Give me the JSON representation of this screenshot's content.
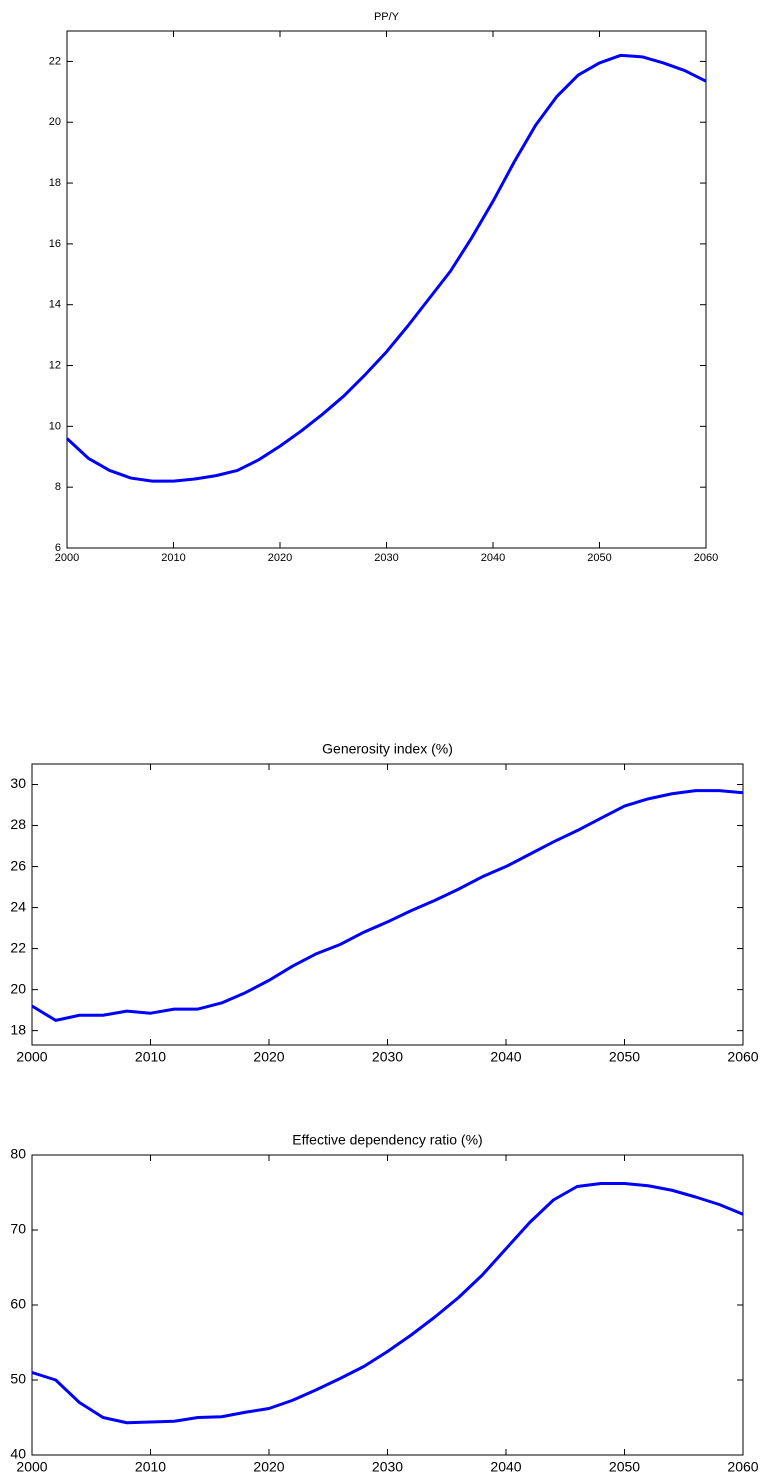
{
  "chart_data": [
    {
      "type": "line",
      "title": "PP/Y",
      "color": "#0000ff",
      "x": [
        2000,
        2002,
        2004,
        2006,
        2008,
        2010,
        2012,
        2014,
        2016,
        2018,
        2020,
        2022,
        2024,
        2026,
        2028,
        2030,
        2032,
        2034,
        2036,
        2038,
        2040,
        2042,
        2044,
        2046,
        2048,
        2050,
        2052,
        2054,
        2056,
        2058,
        2060
      ],
      "values": [
        9.6,
        8.95,
        8.55,
        8.3,
        8.2,
        8.2,
        8.27,
        8.38,
        8.55,
        8.9,
        9.35,
        9.85,
        10.4,
        11.0,
        11.7,
        12.45,
        13.3,
        14.2,
        15.1,
        16.2,
        17.4,
        18.7,
        19.9,
        20.85,
        21.55,
        21.95,
        22.2,
        22.15,
        21.95,
        21.7,
        21.35
      ],
      "xlim": [
        2000,
        2060
      ],
      "xticks": [
        2000,
        2010,
        2020,
        2030,
        2040,
        2050,
        2060
      ],
      "ylim": [
        6,
        23
      ],
      "yticks": [
        6,
        8,
        10,
        12,
        14,
        16,
        18,
        20,
        22
      ]
    },
    {
      "type": "line",
      "title": "Generosity index (%)",
      "color": "#0000ff",
      "x": [
        2000,
        2002,
        2004,
        2006,
        2008,
        2010,
        2012,
        2014,
        2016,
        2018,
        2020,
        2022,
        2024,
        2026,
        2028,
        2030,
        2032,
        2034,
        2036,
        2038,
        2040,
        2042,
        2044,
        2046,
        2048,
        2050,
        2052,
        2054,
        2056,
        2058,
        2060
      ],
      "values": [
        19.2,
        18.5,
        18.75,
        18.75,
        18.95,
        18.85,
        19.05,
        19.05,
        19.35,
        19.85,
        20.45,
        21.15,
        21.75,
        22.2,
        22.8,
        23.3,
        23.85,
        24.35,
        24.9,
        25.5,
        26.0,
        26.6,
        27.2,
        27.75,
        28.35,
        28.95,
        29.3,
        29.55,
        29.7,
        29.7,
        29.6
      ],
      "xlim": [
        2000,
        2060
      ],
      "xticks": [
        2000,
        2010,
        2020,
        2030,
        2040,
        2050,
        2060
      ],
      "ylim": [
        17.3,
        31
      ],
      "yticks": [
        18,
        20,
        22,
        24,
        26,
        28,
        30
      ]
    },
    {
      "type": "line",
      "title": "Effective dependency ratio (%)",
      "color": "#0000ff",
      "x": [
        2000,
        2002,
        2004,
        2006,
        2008,
        2010,
        2012,
        2014,
        2016,
        2018,
        2020,
        2022,
        2024,
        2026,
        2028,
        2030,
        2032,
        2034,
        2036,
        2038,
        2040,
        2042,
        2044,
        2046,
        2048,
        2050,
        2052,
        2054,
        2056,
        2058,
        2060
      ],
      "values": [
        51,
        50,
        47,
        45,
        44.3,
        44.4,
        44.5,
        45,
        45.1,
        45.7,
        46.2,
        47.3,
        48.7,
        50.2,
        51.8,
        53.8,
        56,
        58.4,
        61,
        64,
        67.5,
        71,
        74,
        75.8,
        76.2,
        76.2,
        75.9,
        75.3,
        74.4,
        73.4,
        72.1
      ],
      "xlim": [
        2000,
        2060
      ],
      "xticks": [
        2000,
        2010,
        2020,
        2030,
        2040,
        2050,
        2060
      ],
      "ylim": [
        40,
        80
      ],
      "yticks": [
        40,
        50,
        60,
        70,
        80
      ]
    }
  ]
}
